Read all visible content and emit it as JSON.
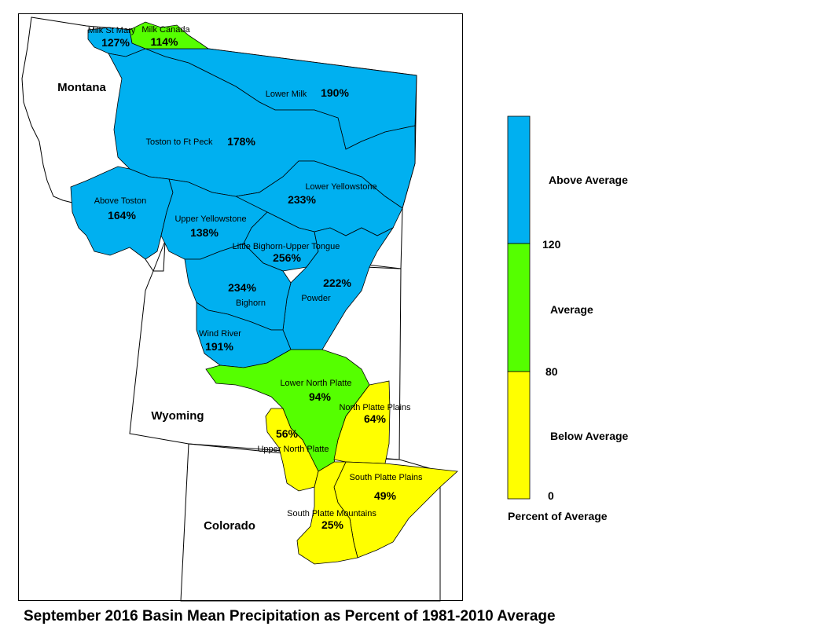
{
  "title": "September 2016 Basin Mean Precipitation as Percent of 1981-2010 Average",
  "states": [
    "Montana",
    "Wyoming",
    "Colorado"
  ],
  "basins": [
    {
      "id": "milk-st-mary",
      "name": "Milk St Mary",
      "percent": "127%",
      "class": "above"
    },
    {
      "id": "milk-canada",
      "name": "Milk Canada",
      "percent": "114%",
      "class": "average"
    },
    {
      "id": "lower-milk",
      "name": "Lower Milk",
      "percent": "190%",
      "class": "above"
    },
    {
      "id": "toston-ft-peck",
      "name": "Toston to Ft Peck",
      "percent": "178%",
      "class": "above"
    },
    {
      "id": "above-toston",
      "name": "Above Toston",
      "percent": "164%",
      "class": "above"
    },
    {
      "id": "lower-yellowstone",
      "name": "Lower Yellowstone",
      "percent": "233%",
      "class": "above"
    },
    {
      "id": "upper-yellowstone",
      "name": "Upper Yellowstone",
      "percent": "138%",
      "class": "above"
    },
    {
      "id": "little-bighorn",
      "name": "Little Bighorn-Upper Tongue",
      "percent": "256%",
      "class": "above"
    },
    {
      "id": "bighorn",
      "name": "Bighorn",
      "percent": "234%",
      "class": "above"
    },
    {
      "id": "powder",
      "name": "Powder",
      "percent": "222%",
      "class": "above"
    },
    {
      "id": "wind-river",
      "name": "Wind River",
      "percent": "191%",
      "class": "above"
    },
    {
      "id": "lower-north-platte",
      "name": "Lower North Platte",
      "percent": "94%",
      "class": "average"
    },
    {
      "id": "north-platte-plains",
      "name": "North Platte Plains",
      "percent": "64%",
      "class": "below"
    },
    {
      "id": "upper-north-platte",
      "name": "Upper North Platte",
      "percent": "56%",
      "class": "below"
    },
    {
      "id": "south-platte-plains",
      "name": "South Platte Plains",
      "percent": "49%",
      "class": "below"
    },
    {
      "id": "south-platte-mountains",
      "name": "South Platte Mountains",
      "percent": "25%",
      "class": "below"
    }
  ],
  "legend": {
    "title": "Percent of Average",
    "classes": [
      {
        "label": "Above Average",
        "color": "#00b0f0"
      },
      {
        "label": "Average",
        "color": "#55ff00"
      },
      {
        "label": "Below Average",
        "color": "#ffff00"
      }
    ],
    "breaks": [
      "120",
      "80",
      "0"
    ]
  },
  "colors": {
    "above": "#00b0f0",
    "average": "#55ff00",
    "below": "#ffff00",
    "border": "#000000"
  }
}
